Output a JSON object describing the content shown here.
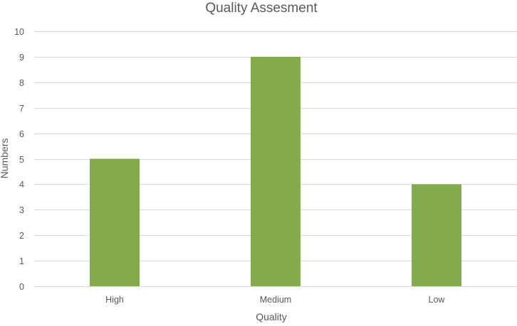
{
  "chart_data": {
    "type": "bar",
    "title": "Quality Assesment",
    "xlabel": "Quality",
    "ylabel": "Numbers",
    "categories": [
      "High",
      "Medium",
      "Low"
    ],
    "values": [
      5,
      9,
      4
    ],
    "ylim": [
      0,
      10
    ],
    "yticks": [
      0,
      1,
      2,
      3,
      4,
      5,
      6,
      7,
      8,
      9,
      10
    ],
    "grid": true,
    "legend": "none",
    "colors": {
      "bar": "#84AB4B",
      "grid": "#D9D9D9",
      "text": "#595959",
      "title": "#595959"
    }
  }
}
